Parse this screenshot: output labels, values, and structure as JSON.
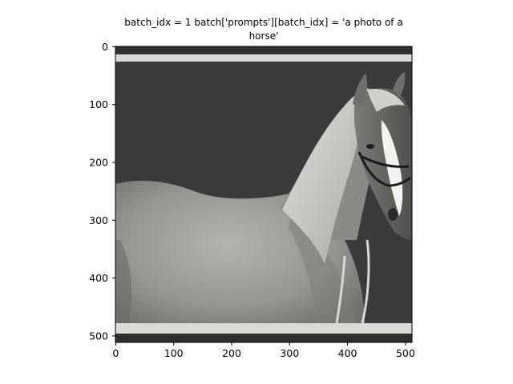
{
  "figure": {
    "title_line1": "batch_idx = 1 batch['prompts'][batch_idx] = 'a photo of a",
    "title_line2": "horse'"
  },
  "axes": {
    "x_ticks": [
      "0",
      "100",
      "200",
      "300",
      "400",
      "500"
    ],
    "y_ticks": [
      "0",
      "100",
      "200",
      "300",
      "400",
      "500"
    ],
    "xlim": [
      0,
      512
    ],
    "ylim": [
      512,
      0
    ]
  },
  "image": {
    "description_colors": {
      "background": "#3a3a38",
      "frame_bar": "#d8d8d4",
      "horse_body": "#9a9a96",
      "mane": "#c9c9c4"
    }
  }
}
